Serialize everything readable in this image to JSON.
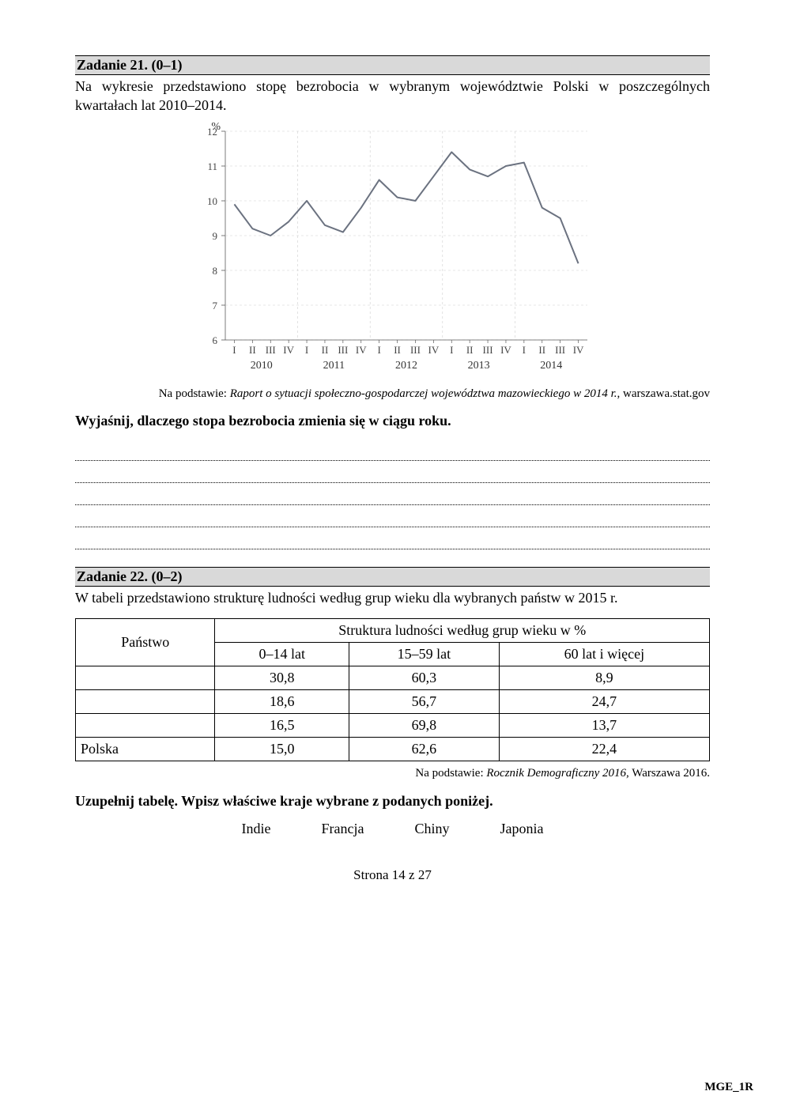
{
  "task21": {
    "header": "Zadanie 21. (0–1)",
    "intro": "Na wykresie przedstawiono stopę bezrobocia w wybranym województwie Polski w poszczególnych kwartałach lat 2010–2014.",
    "chart": {
      "type": "line",
      "y_label": "%",
      "ylim": [
        6,
        12
      ],
      "yticks": [
        6,
        7,
        8,
        9,
        10,
        11,
        12
      ],
      "x_quarter_labels": [
        "I",
        "II",
        "III",
        "IV",
        "I",
        "II",
        "III",
        "IV",
        "I",
        "II",
        "III",
        "IV",
        "I",
        "II",
        "III",
        "IV",
        "I",
        "II",
        "III",
        "IV"
      ],
      "x_year_labels": [
        "2010",
        "2011",
        "2012",
        "2013",
        "2014"
      ],
      "values": [
        9.9,
        9.2,
        9.0,
        9.4,
        10.0,
        9.3,
        9.1,
        9.8,
        10.6,
        10.1,
        10.0,
        10.7,
        11.4,
        10.9,
        10.7,
        11.0,
        11.1,
        9.8,
        9.5,
        8.2
      ],
      "line_color": "#6b7280",
      "line_width": 2,
      "axis_color": "#5a5a5a",
      "grid_dash": "3,3",
      "bg": "#ffffff",
      "label_fontsize": 14,
      "tick_fontsize": 13
    },
    "caption_pre": "Na podstawie: ",
    "caption_italic": "Raport o sytuacji społeczno-gospodarczej województwa mazowieckiego w 2014 r.",
    "caption_post": ", warszawa.stat.gov",
    "prompt": "Wyjaśnij, dlaczego stopa bezrobocia zmienia się w ciągu roku.",
    "answer_line_count": 5
  },
  "task22": {
    "header": "Zadanie 22. (0–2)",
    "intro": "W tabeli przedstawiono strukturę ludności według grup wieku dla wybranych państw w 2015 r.",
    "table": {
      "super_header": "Struktura ludności według grup wieku w %",
      "country_header": "Państwo",
      "columns": [
        "0–14 lat",
        "15–59 lat",
        "60 lat i więcej"
      ],
      "rows": [
        {
          "country": "",
          "values": [
            "30,8",
            "60,3",
            "8,9"
          ]
        },
        {
          "country": "",
          "values": [
            "18,6",
            "56,7",
            "24,7"
          ]
        },
        {
          "country": "",
          "values": [
            "16,5",
            "69,8",
            "13,7"
          ]
        },
        {
          "country": "Polska",
          "values": [
            "15,0",
            "62,6",
            "22,4"
          ]
        }
      ]
    },
    "caption_pre": "Na podstawie: ",
    "caption_italic": "Rocznik Demograficzny 2016",
    "caption_post": ", Warszawa 2016.",
    "prompt": "Uzupełnij tabelę. Wpisz właściwe kraje wybrane z podanych poniżej.",
    "options": [
      "Indie",
      "Francja",
      "Chiny",
      "Japonia"
    ]
  },
  "footer": {
    "page": "Strona 14 z 27",
    "code": "MGE_1R"
  }
}
